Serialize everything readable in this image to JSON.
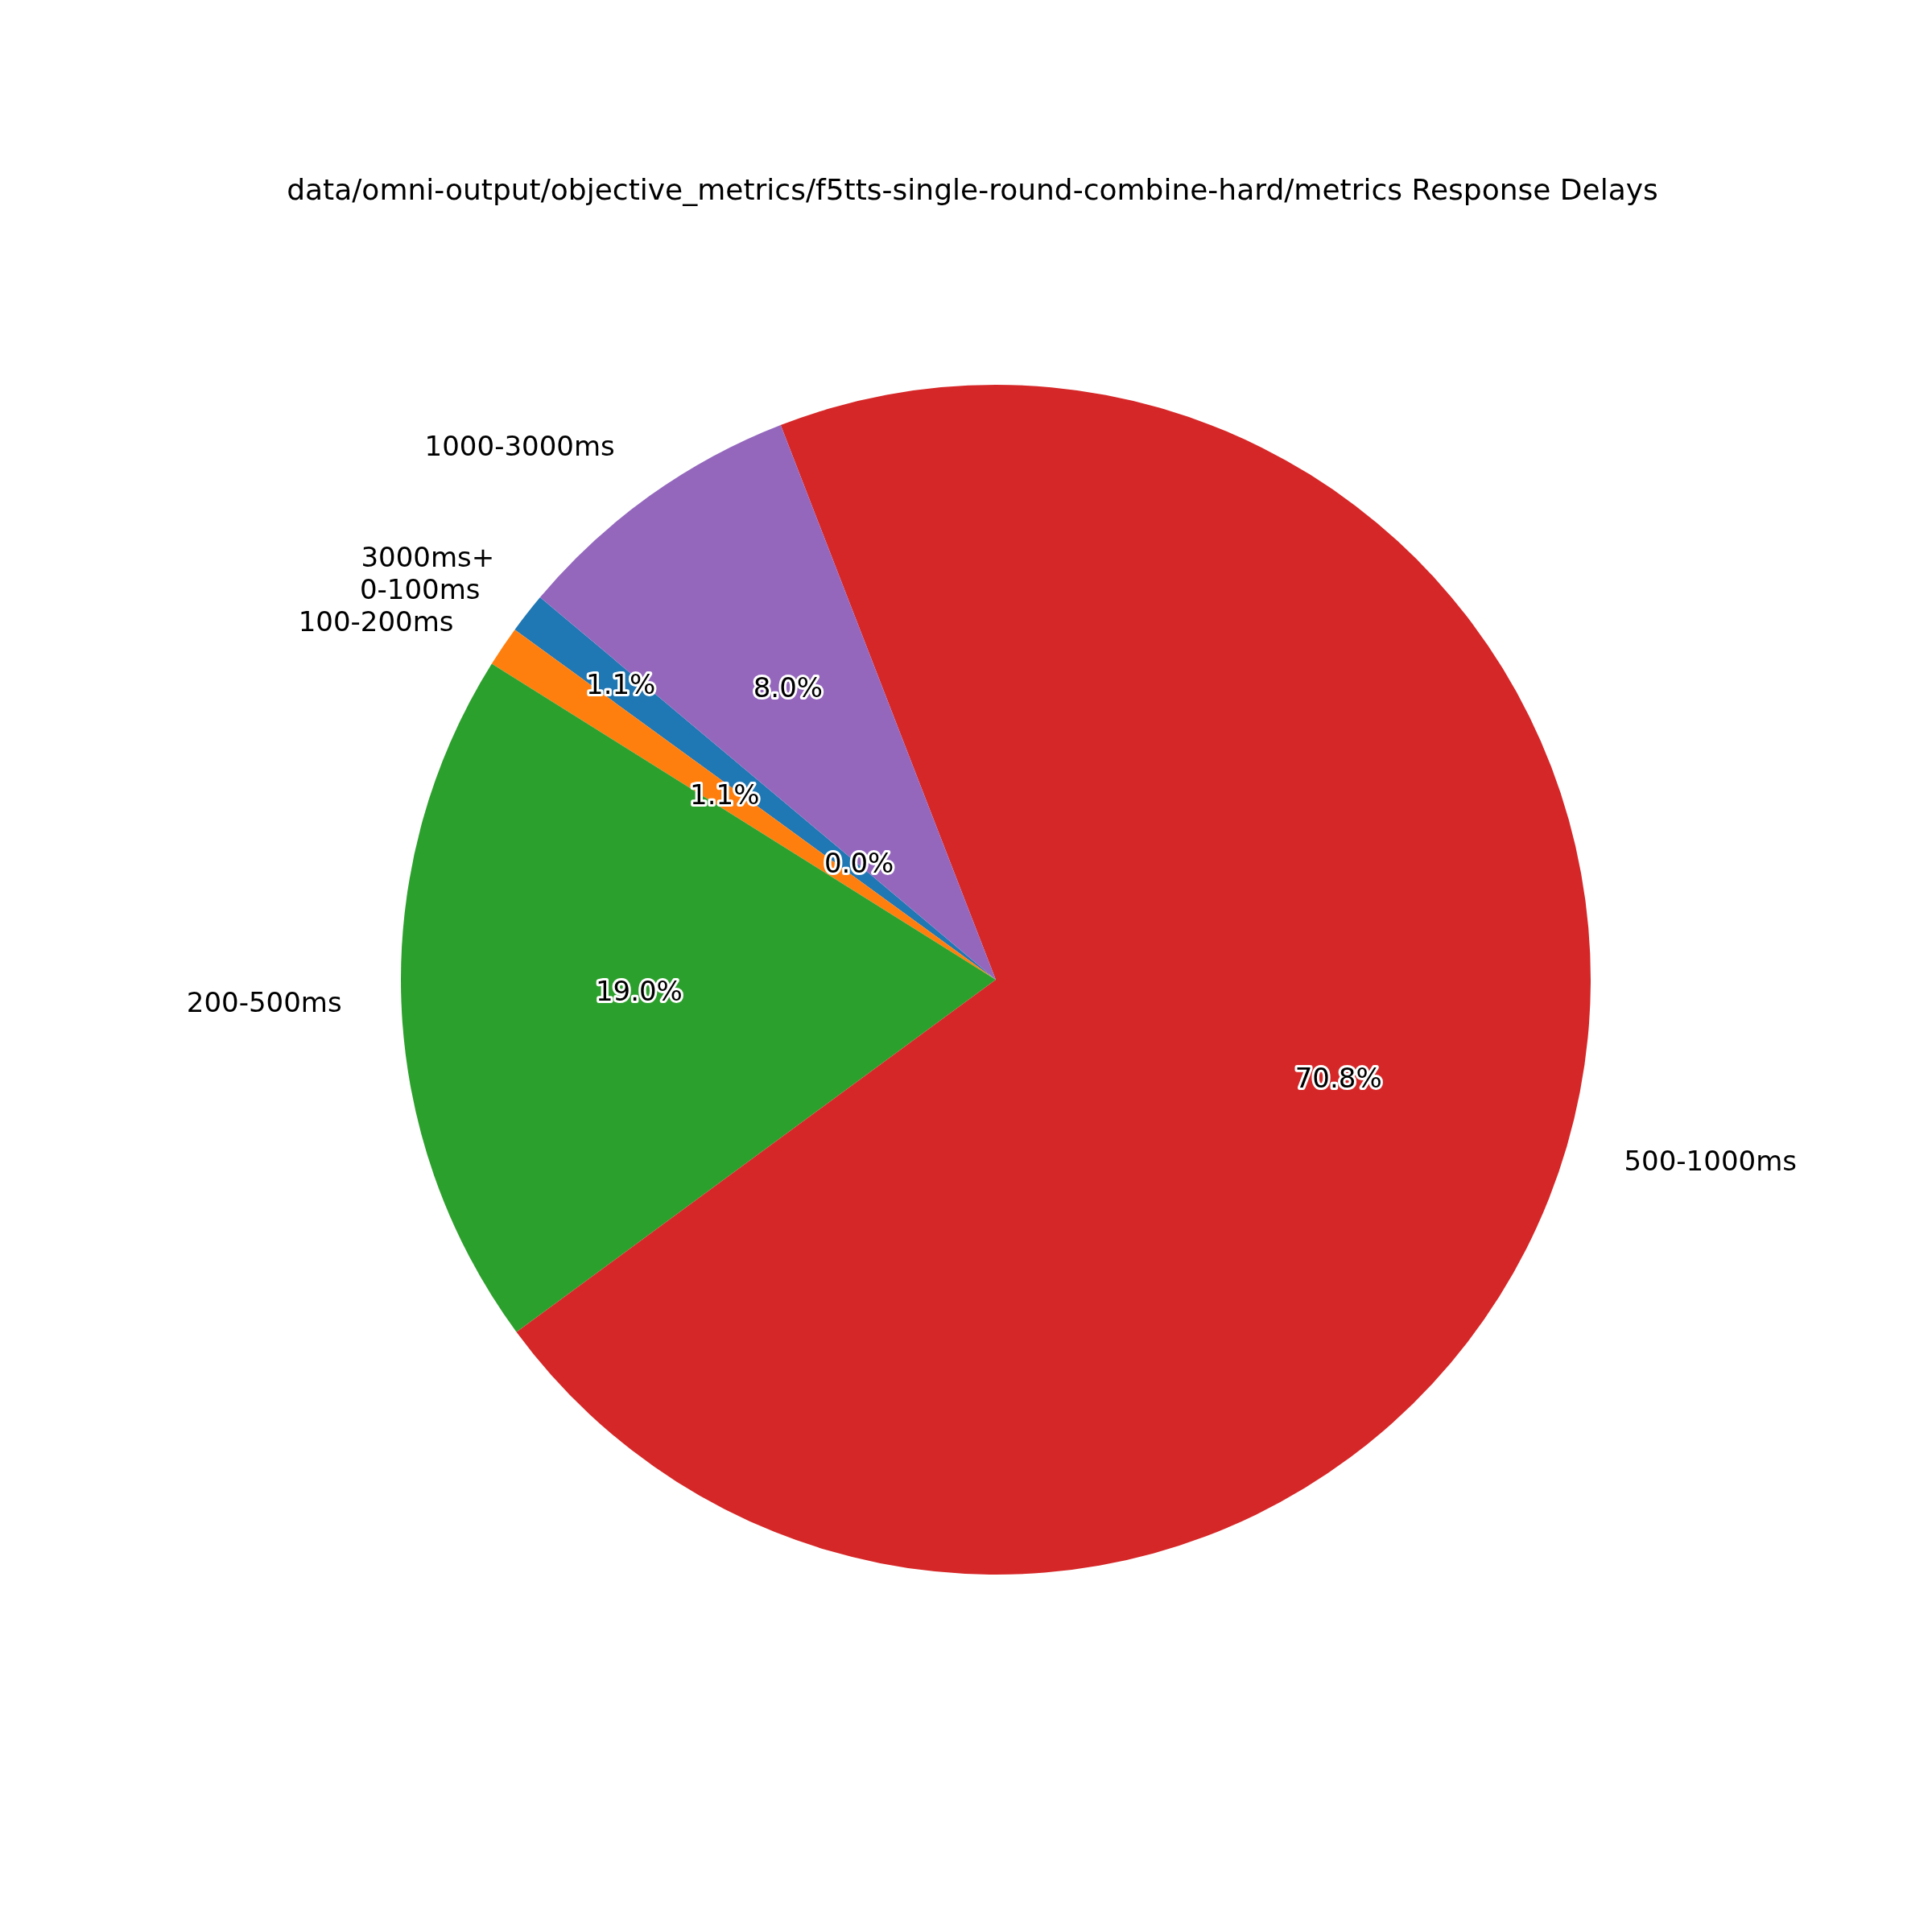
{
  "chart_data": {
    "type": "pie",
    "title": "data/omni-output/objective_metrics/f5tts-single-round-combine-hard/metrics Response Delays",
    "categories": [
      "0-100ms",
      "100-200ms",
      "200-500ms",
      "500-1000ms",
      "1000-3000ms",
      "3000ms+"
    ],
    "values": [
      1.1,
      1.1,
      19.0,
      70.8,
      8.0,
      0.0
    ],
    "colors": [
      "#1f77b4",
      "#ff7f0e",
      "#2ca02c",
      "#d62728",
      "#9467bd",
      "#8c564b"
    ],
    "value_labels": [
      "1.1%",
      "1.1%",
      "19.0%",
      "70.8%",
      "8.0%",
      "0.0%"
    ]
  }
}
